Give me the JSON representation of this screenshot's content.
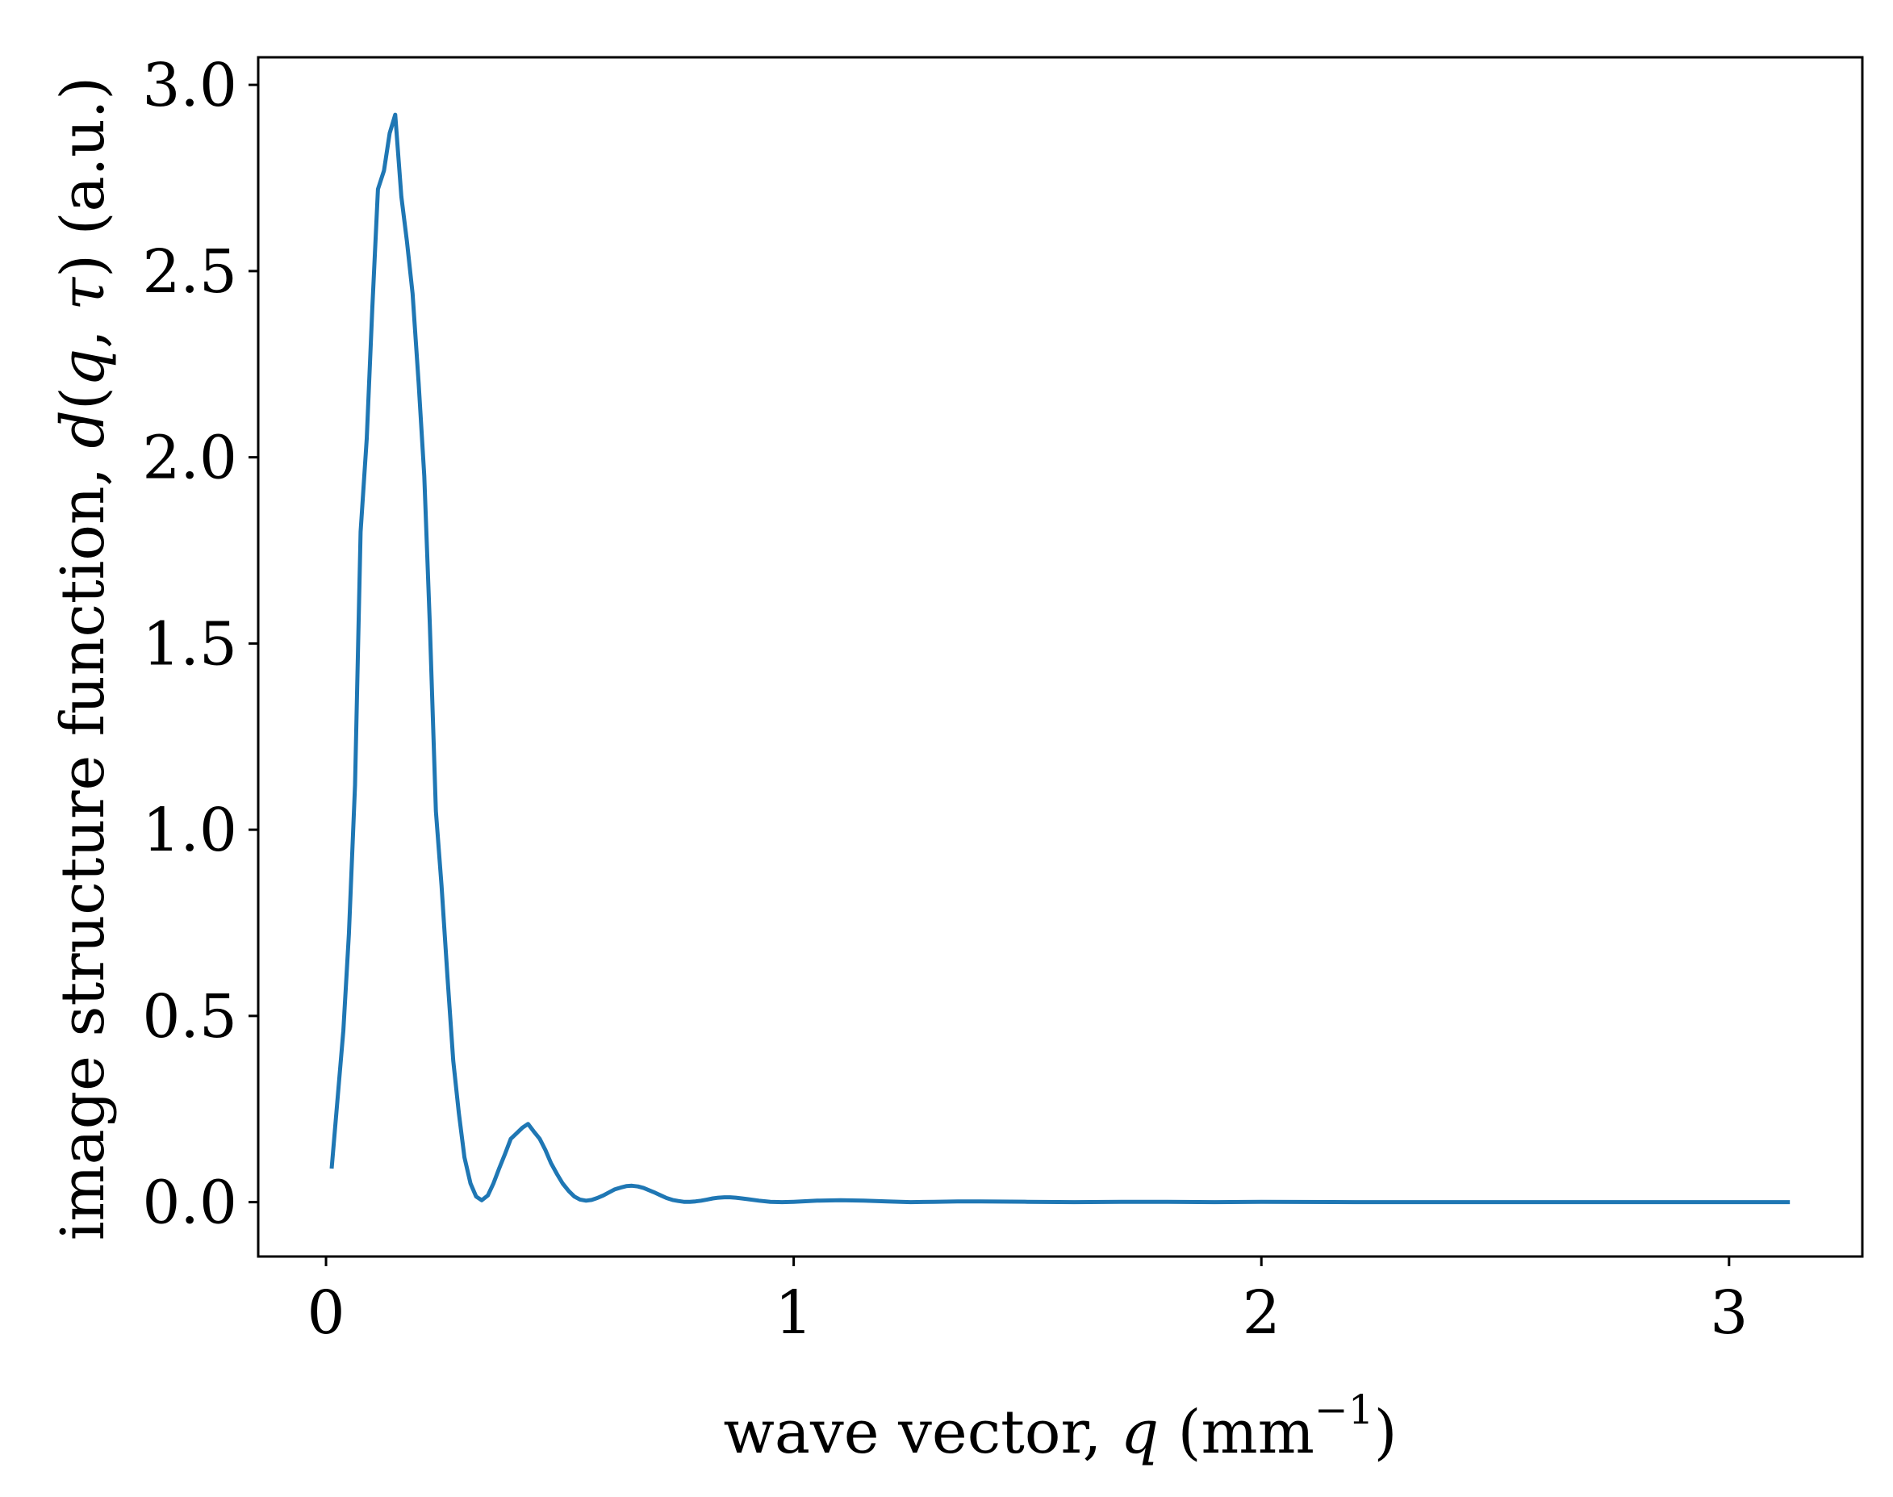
{
  "chart_data": {
    "type": "line",
    "xlabel": {
      "pre": "wave vector, ",
      "sym": "q",
      "unit_pre": " (mm",
      "sup": "−1",
      "unit_post": ")"
    },
    "ylabel": {
      "pre": "image structure function, ",
      "sym": "d",
      "args_open": "(",
      "arg1": "q",
      "comma": ", ",
      "arg2": "τ",
      "args_close": ")",
      "post": " (a.u.)"
    },
    "xlim": [
      -0.145,
      3.285
    ],
    "ylim": [
      -0.146,
      3.074
    ],
    "x_ticks": [
      0,
      1,
      2,
      3
    ],
    "x_tick_labels": [
      "0",
      "1",
      "2",
      "3"
    ],
    "y_ticks": [
      0.0,
      0.5,
      1.0,
      1.5,
      2.0,
      2.5,
      3.0
    ],
    "y_tick_labels": [
      "0.0",
      "0.5",
      "1.0",
      "1.5",
      "2.0",
      "2.5",
      "3.0"
    ],
    "grid": false,
    "series": [
      {
        "color": "#1f77b4",
        "x": [
          0.012,
          0.037,
          0.049,
          0.062,
          0.074,
          0.087,
          0.099,
          0.111,
          0.124,
          0.136,
          0.148,
          0.161,
          0.173,
          0.185,
          0.198,
          0.21,
          0.222,
          0.235,
          0.247,
          0.26,
          0.272,
          0.284,
          0.296,
          0.309,
          0.321,
          0.333,
          0.346,
          0.358,
          0.37,
          0.383,
          0.395,
          0.42,
          0.432,
          0.444,
          0.457,
          0.469,
          0.481,
          0.494,
          0.506,
          0.519,
          0.531,
          0.543,
          0.556,
          0.568,
          0.58,
          0.593,
          0.605,
          0.617,
          0.63,
          0.642,
          0.654,
          0.667,
          0.679,
          0.691,
          0.704,
          0.716,
          0.728,
          0.741,
          0.753,
          0.765,
          0.778,
          0.79,
          0.802,
          0.815,
          0.827,
          0.839,
          0.852,
          0.864,
          0.876,
          0.889,
          0.901,
          0.926,
          0.95,
          0.975,
          1.0,
          1.05,
          1.1,
          1.15,
          1.2,
          1.25,
          1.3,
          1.35,
          1.4,
          1.5,
          1.6,
          1.7,
          1.8,
          1.9,
          2.0,
          2.2,
          2.4,
          2.6,
          2.8,
          3.0,
          3.13
        ],
        "y": [
          0.09,
          0.46,
          0.72,
          1.12,
          1.8,
          2.05,
          2.4,
          2.72,
          2.77,
          2.87,
          2.92,
          2.7,
          2.58,
          2.44,
          2.2,
          1.95,
          1.55,
          1.05,
          0.85,
          0.6,
          0.38,
          0.24,
          0.12,
          0.05,
          0.015,
          0.005,
          0.018,
          0.05,
          0.09,
          0.13,
          0.17,
          0.2,
          0.21,
          0.19,
          0.17,
          0.14,
          0.105,
          0.075,
          0.05,
          0.03,
          0.015,
          0.007,
          0.004,
          0.006,
          0.011,
          0.018,
          0.026,
          0.034,
          0.039,
          0.043,
          0.044,
          0.042,
          0.038,
          0.032,
          0.025,
          0.018,
          0.011,
          0.006,
          0.003,
          0.001,
          0.001,
          0.002,
          0.004,
          0.007,
          0.01,
          0.012,
          0.013,
          0.013,
          0.012,
          0.01,
          0.008,
          0.004,
          0.001,
          0.0,
          0.001,
          0.004,
          0.005,
          0.004,
          0.002,
          0.0,
          0.001,
          0.002,
          0.002,
          0.001,
          0.0,
          0.001,
          0.001,
          0.0,
          0.001,
          0.0,
          0.0,
          0.0,
          0.0,
          0.0,
          0.0
        ]
      }
    ]
  }
}
